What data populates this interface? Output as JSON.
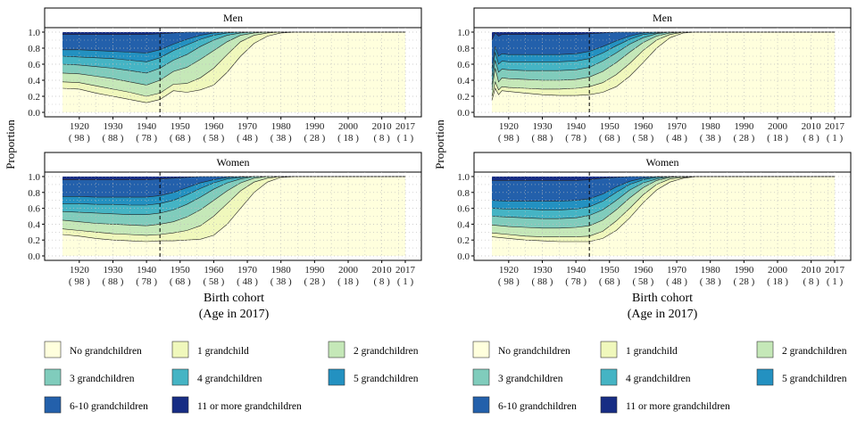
{
  "colors": {
    "series": [
      "#FFFFDD",
      "#F0F8BC",
      "#C5E8B8",
      "#80CCBC",
      "#45B4C4",
      "#2391C1",
      "#2360AB",
      "#172D84"
    ],
    "panel_bg": "#FFFFFF",
    "strip_bg": "#FFFFFF",
    "grid": "#BDBDBD",
    "cutoff_line": "#000000"
  },
  "legend": {
    "items": [
      "No grandchildren",
      "1 grandchild",
      "2 grandchildren",
      "3 grandchildren",
      "4 grandchildren",
      "5 grandchildren",
      "6-10 grandchildren",
      "11 or more grandchildren"
    ]
  },
  "chart_data": [
    {
      "type": "area",
      "stacked": true,
      "ylabel": "Proportion",
      "xlabel": "Birth cohort",
      "xlabel_sub": "(Age in 2017)",
      "x_ticks": [
        1920,
        1930,
        1940,
        1950,
        1960,
        1970,
        1980,
        1990,
        2000,
        2010,
        2017
      ],
      "x_tick_sub": [
        "( 98 )",
        "( 88 )",
        "( 78 )",
        "( 68 )",
        "( 58 )",
        "( 48 )",
        "( 38 )",
        "( 28 )",
        "( 18 )",
        "( 8 )",
        "( 1 )"
      ],
      "xlim": [
        1915,
        2017
      ],
      "y_ticks": [
        "0.0",
        "0.2",
        "0.4",
        "0.6",
        "0.8",
        "1.0"
      ],
      "ylim": [
        0,
        1
      ],
      "cutoff_year": 1944,
      "grid": true,
      "panels": [
        {
          "strip": "Men",
          "x": [
            1915,
            1920,
            1925,
            1930,
            1935,
            1940,
            1944,
            1948,
            1952,
            1956,
            1960,
            1964,
            1968,
            1972,
            1976,
            1980,
            1985,
            1990,
            2000,
            2010,
            2017
          ],
          "cumulative": [
            [
              0.3,
              0.29,
              0.24,
              0.2,
              0.16,
              0.12,
              0.16,
              0.27,
              0.25,
              0.28,
              0.34,
              0.5,
              0.7,
              0.86,
              0.95,
              0.99,
              1.0,
              1.0,
              1.0,
              1.0,
              1.0
            ],
            [
              0.38,
              0.37,
              0.33,
              0.29,
              0.25,
              0.2,
              0.24,
              0.35,
              0.36,
              0.43,
              0.55,
              0.72,
              0.88,
              0.96,
              0.99,
              1.0,
              1.0,
              1.0,
              1.0,
              1.0,
              1.0
            ],
            [
              0.49,
              0.48,
              0.45,
              0.42,
              0.38,
              0.34,
              0.4,
              0.51,
              0.56,
              0.66,
              0.77,
              0.88,
              0.96,
              0.99,
              1.0,
              1.0,
              1.0,
              1.0,
              1.0,
              1.0,
              1.0
            ],
            [
              0.6,
              0.59,
              0.57,
              0.55,
              0.52,
              0.49,
              0.55,
              0.65,
              0.72,
              0.82,
              0.9,
              0.96,
              0.99,
              1.0,
              1.0,
              1.0,
              1.0,
              1.0,
              1.0,
              1.0,
              1.0
            ],
            [
              0.7,
              0.69,
              0.68,
              0.67,
              0.65,
              0.63,
              0.68,
              0.77,
              0.84,
              0.91,
              0.96,
              0.99,
              1.0,
              1.0,
              1.0,
              1.0,
              1.0,
              1.0,
              1.0,
              1.0,
              1.0
            ],
            [
              0.78,
              0.78,
              0.77,
              0.76,
              0.75,
              0.74,
              0.78,
              0.85,
              0.91,
              0.96,
              0.99,
              1.0,
              1.0,
              1.0,
              1.0,
              1.0,
              1.0,
              1.0,
              1.0,
              1.0,
              1.0
            ],
            [
              0.97,
              0.97,
              0.97,
              0.97,
              0.97,
              0.97,
              0.98,
              0.99,
              1.0,
              1.0,
              1.0,
              1.0,
              1.0,
              1.0,
              1.0,
              1.0,
              1.0,
              1.0,
              1.0,
              1.0,
              1.0
            ],
            [
              1.0,
              1.0,
              1.0,
              1.0,
              1.0,
              1.0,
              1.0,
              1.0,
              1.0,
              1.0,
              1.0,
              1.0,
              1.0,
              1.0,
              1.0,
              1.0,
              1.0,
              1.0,
              1.0,
              1.0,
              1.0
            ]
          ]
        },
        {
          "strip": "Women",
          "x": [
            1915,
            1920,
            1925,
            1930,
            1935,
            1940,
            1944,
            1948,
            1952,
            1956,
            1960,
            1964,
            1968,
            1972,
            1976,
            1980,
            1985,
            1990,
            2000,
            2010,
            2017
          ],
          "cumulative": [
            [
              0.27,
              0.25,
              0.22,
              0.2,
              0.19,
              0.18,
              0.19,
              0.19,
              0.2,
              0.21,
              0.26,
              0.4,
              0.6,
              0.8,
              0.93,
              0.99,
              1.0,
              1.0,
              1.0,
              1.0,
              1.0
            ],
            [
              0.34,
              0.32,
              0.3,
              0.28,
              0.27,
              0.26,
              0.27,
              0.29,
              0.32,
              0.38,
              0.5,
              0.66,
              0.82,
              0.93,
              0.98,
              1.0,
              1.0,
              1.0,
              1.0,
              1.0,
              1.0
            ],
            [
              0.45,
              0.43,
              0.41,
              0.4,
              0.39,
              0.38,
              0.4,
              0.43,
              0.49,
              0.58,
              0.7,
              0.82,
              0.92,
              0.98,
              1.0,
              1.0,
              1.0,
              1.0,
              1.0,
              1.0,
              1.0
            ],
            [
              0.56,
              0.55,
              0.54,
              0.53,
              0.52,
              0.52,
              0.54,
              0.58,
              0.65,
              0.74,
              0.84,
              0.92,
              0.97,
              1.0,
              1.0,
              1.0,
              1.0,
              1.0,
              1.0,
              1.0,
              1.0
            ],
            [
              0.66,
              0.66,
              0.65,
              0.65,
              0.64,
              0.64,
              0.66,
              0.7,
              0.77,
              0.85,
              0.92,
              0.97,
              0.99,
              1.0,
              1.0,
              1.0,
              1.0,
              1.0,
              1.0,
              1.0,
              1.0
            ],
            [
              0.75,
              0.75,
              0.74,
              0.74,
              0.74,
              0.74,
              0.76,
              0.8,
              0.86,
              0.92,
              0.96,
              0.99,
              1.0,
              1.0,
              1.0,
              1.0,
              1.0,
              1.0,
              1.0,
              1.0,
              1.0
            ],
            [
              0.96,
              0.96,
              0.96,
              0.96,
              0.96,
              0.96,
              0.97,
              0.98,
              0.99,
              1.0,
              1.0,
              1.0,
              1.0,
              1.0,
              1.0,
              1.0,
              1.0,
              1.0,
              1.0,
              1.0,
              1.0
            ],
            [
              1.0,
              1.0,
              1.0,
              1.0,
              1.0,
              1.0,
              1.0,
              1.0,
              1.0,
              1.0,
              1.0,
              1.0,
              1.0,
              1.0,
              1.0,
              1.0,
              1.0,
              1.0,
              1.0,
              1.0,
              1.0
            ]
          ]
        }
      ]
    },
    {
      "type": "area",
      "stacked": true,
      "ylabel": "Proportion",
      "xlabel": "Birth cohort",
      "xlabel_sub": "(Age in 2017)",
      "x_ticks": [
        1920,
        1930,
        1940,
        1950,
        1960,
        1970,
        1980,
        1990,
        2000,
        2010,
        2017
      ],
      "x_tick_sub": [
        "( 98 )",
        "( 88 )",
        "( 78 )",
        "( 68 )",
        "( 58 )",
        "( 48 )",
        "( 38 )",
        "( 28 )",
        "( 18 )",
        "( 8 )",
        "( 1 )"
      ],
      "xlim": [
        1915,
        2017
      ],
      "y_ticks": [
        "0.0",
        "0.2",
        "0.4",
        "0.6",
        "0.8",
        "1.0"
      ],
      "ylim": [
        0,
        1
      ],
      "cutoff_year": 1944,
      "grid": true,
      "panels": [
        {
          "strip": "Men",
          "x": [
            1915,
            1916,
            1917,
            1918,
            1920,
            1925,
            1930,
            1935,
            1940,
            1944,
            1948,
            1952,
            1956,
            1960,
            1964,
            1968,
            1972,
            1976,
            1980,
            1985,
            1990,
            2000,
            2010,
            2017
          ],
          "cumulative": [
            [
              0.15,
              0.3,
              0.22,
              0.27,
              0.26,
              0.24,
              0.22,
              0.21,
              0.21,
              0.22,
              0.25,
              0.32,
              0.45,
              0.62,
              0.8,
              0.93,
              0.99,
              1.0,
              1.0,
              1.0,
              1.0,
              1.0,
              1.0,
              1.0
            ],
            [
              0.2,
              0.38,
              0.28,
              0.32,
              0.31,
              0.3,
              0.29,
              0.29,
              0.3,
              0.32,
              0.37,
              0.47,
              0.61,
              0.77,
              0.9,
              0.97,
              1.0,
              1.0,
              1.0,
              1.0,
              1.0,
              1.0,
              1.0,
              1.0
            ],
            [
              0.28,
              0.55,
              0.38,
              0.43,
              0.42,
              0.41,
              0.4,
              0.4,
              0.41,
              0.44,
              0.51,
              0.62,
              0.75,
              0.87,
              0.95,
              0.99,
              1.0,
              1.0,
              1.0,
              1.0,
              1.0,
              1.0,
              1.0,
              1.0
            ],
            [
              0.35,
              0.65,
              0.5,
              0.54,
              0.53,
              0.52,
              0.52,
              0.52,
              0.53,
              0.56,
              0.64,
              0.74,
              0.85,
              0.93,
              0.98,
              1.0,
              1.0,
              1.0,
              1.0,
              1.0,
              1.0,
              1.0,
              1.0,
              1.0
            ],
            [
              0.45,
              0.75,
              0.6,
              0.64,
              0.63,
              0.63,
              0.63,
              0.63,
              0.64,
              0.67,
              0.74,
              0.83,
              0.91,
              0.97,
              0.99,
              1.0,
              1.0,
              1.0,
              1.0,
              1.0,
              1.0,
              1.0,
              1.0,
              1.0
            ],
            [
              0.55,
              0.82,
              0.7,
              0.73,
              0.72,
              0.72,
              0.72,
              0.72,
              0.73,
              0.76,
              0.82,
              0.89,
              0.95,
              0.99,
              1.0,
              1.0,
              1.0,
              1.0,
              1.0,
              1.0,
              1.0,
              1.0,
              1.0,
              1.0
            ],
            [
              0.9,
              0.99,
              0.95,
              0.97,
              0.97,
              0.97,
              0.97,
              0.97,
              0.97,
              0.98,
              0.99,
              1.0,
              1.0,
              1.0,
              1.0,
              1.0,
              1.0,
              1.0,
              1.0,
              1.0,
              1.0,
              1.0,
              1.0,
              1.0
            ],
            [
              1.0,
              1.0,
              1.0,
              1.0,
              1.0,
              1.0,
              1.0,
              1.0,
              1.0,
              1.0,
              1.0,
              1.0,
              1.0,
              1.0,
              1.0,
              1.0,
              1.0,
              1.0,
              1.0,
              1.0,
              1.0,
              1.0,
              1.0,
              1.0
            ]
          ]
        },
        {
          "strip": "Women",
          "x": [
            1915,
            1920,
            1925,
            1930,
            1935,
            1940,
            1944,
            1948,
            1952,
            1956,
            1960,
            1964,
            1968,
            1972,
            1976,
            1980,
            1985,
            1990,
            2000,
            2010,
            2017
          ],
          "cumulative": [
            [
              0.24,
              0.22,
              0.2,
              0.19,
              0.18,
              0.18,
              0.18,
              0.22,
              0.32,
              0.48,
              0.67,
              0.83,
              0.93,
              0.98,
              1.0,
              1.0,
              1.0,
              1.0,
              1.0,
              1.0,
              1.0
            ],
            [
              0.29,
              0.27,
              0.25,
              0.24,
              0.24,
              0.24,
              0.25,
              0.31,
              0.44,
              0.6,
              0.77,
              0.9,
              0.97,
              0.99,
              1.0,
              1.0,
              1.0,
              1.0,
              1.0,
              1.0,
              1.0
            ],
            [
              0.39,
              0.37,
              0.36,
              0.35,
              0.35,
              0.36,
              0.38,
              0.45,
              0.58,
              0.73,
              0.86,
              0.95,
              0.99,
              1.0,
              1.0,
              1.0,
              1.0,
              1.0,
              1.0,
              1.0,
              1.0
            ],
            [
              0.5,
              0.49,
              0.48,
              0.47,
              0.47,
              0.48,
              0.51,
              0.58,
              0.7,
              0.83,
              0.92,
              0.97,
              1.0,
              1.0,
              1.0,
              1.0,
              1.0,
              1.0,
              1.0,
              1.0,
              1.0
            ],
            [
              0.6,
              0.59,
              0.59,
              0.58,
              0.58,
              0.59,
              0.62,
              0.69,
              0.8,
              0.9,
              0.96,
              0.99,
              1.0,
              1.0,
              1.0,
              1.0,
              1.0,
              1.0,
              1.0,
              1.0,
              1.0
            ],
            [
              0.7,
              0.69,
              0.69,
              0.69,
              0.69,
              0.7,
              0.72,
              0.78,
              0.87,
              0.94,
              0.98,
              1.0,
              1.0,
              1.0,
              1.0,
              1.0,
              1.0,
              1.0,
              1.0,
              1.0,
              1.0
            ],
            [
              0.95,
              0.95,
              0.95,
              0.95,
              0.95,
              0.95,
              0.96,
              0.98,
              0.99,
              1.0,
              1.0,
              1.0,
              1.0,
              1.0,
              1.0,
              1.0,
              1.0,
              1.0,
              1.0,
              1.0,
              1.0
            ],
            [
              1.0,
              1.0,
              1.0,
              1.0,
              1.0,
              1.0,
              1.0,
              1.0,
              1.0,
              1.0,
              1.0,
              1.0,
              1.0,
              1.0,
              1.0,
              1.0,
              1.0,
              1.0,
              1.0,
              1.0,
              1.0
            ]
          ]
        }
      ]
    }
  ]
}
